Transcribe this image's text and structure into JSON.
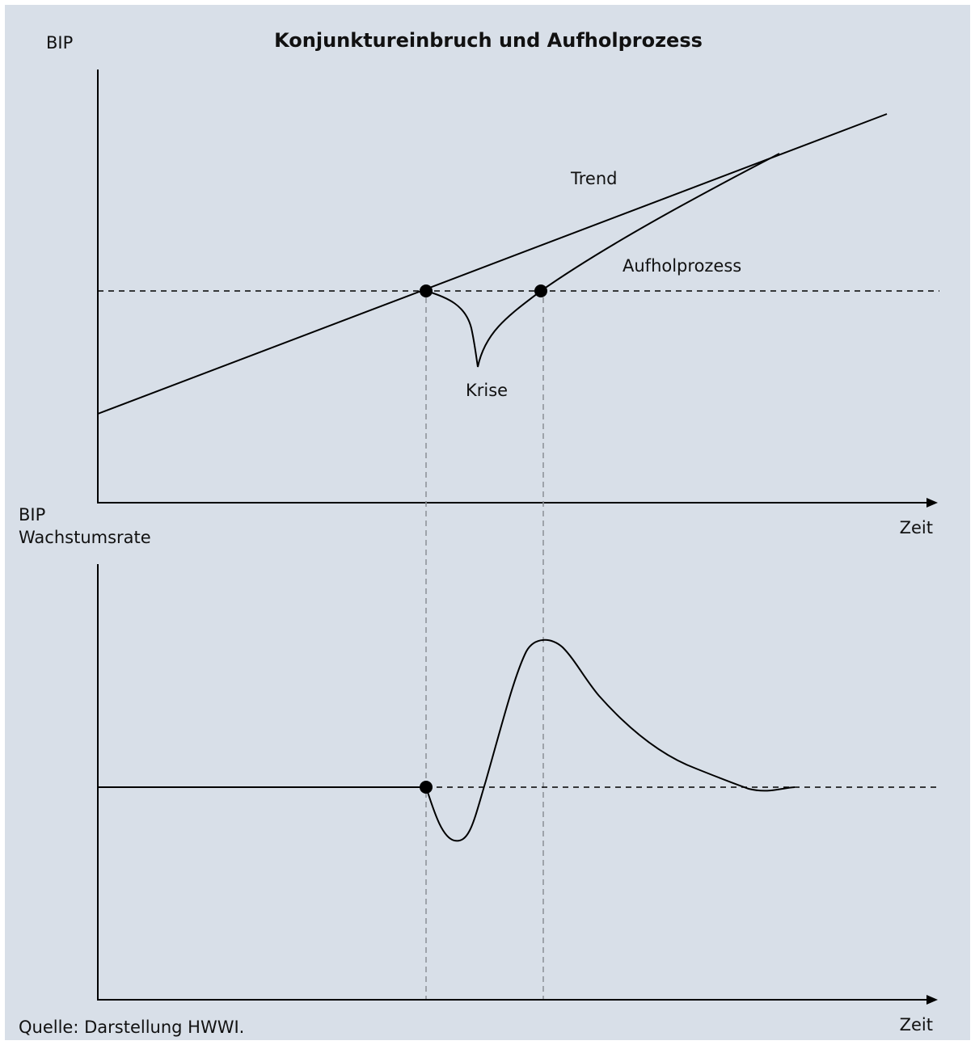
{
  "title": "Konjunktureinbruch und Aufholprozess",
  "top_chart": {
    "y_axis_label": "BIP",
    "x_axis_label": "Zeit",
    "labels": {
      "trend": "Trend",
      "catch_up": "Aufholprozess",
      "crisis": "Krise"
    }
  },
  "bottom_chart": {
    "y_axis_label_line1": "BIP",
    "y_axis_label_line2": "Wachstumsrate",
    "x_axis_label": "Zeit"
  },
  "source": "Quelle: Darstellung HWWI."
}
